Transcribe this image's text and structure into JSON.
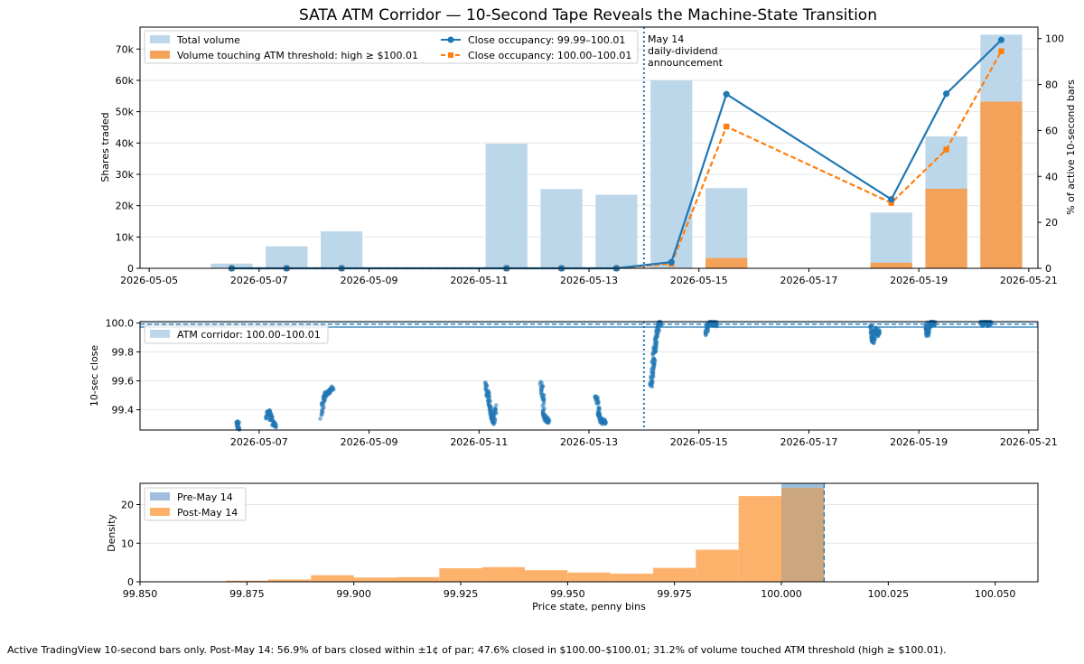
{
  "figure_title": "SATA ATM Corridor — 10-Second Tape Reveals the Machine-State Transition",
  "caption": "Active TradingView 10-second bars only. Post-May 14: 56.9% of bars closed within ±1¢ of par; 47.6% closed in $100.00–$100.01; 31.2% of volume touched ATM threshold (high ≥ $100.01).",
  "colors": {
    "total_volume": "#bdd7ea",
    "touch_volume": "#f4a259",
    "blue": "#1f77b4",
    "orange": "#ff7f0e",
    "pre_hist": "#9fbfdb",
    "post_hist": "#fdb26c",
    "overlap_hist": "#cca67f"
  },
  "chart_data": [
    {
      "type": "bar+line",
      "title": "SATA ATM Corridor — 10-Second Tape Reveals the Machine-State Transition",
      "xlabel": "",
      "ylabel": "Shares traded",
      "y2label": "% of active 10-second bars",
      "x_ticks": [
        "2026-05-05",
        "2026-05-07",
        "2026-05-09",
        "2026-05-11",
        "2026-05-13",
        "2026-05-15",
        "2026-05-17",
        "2026-05-19",
        "2026-05-21"
      ],
      "y_ticks": [
        "0",
        "10k",
        "20k",
        "30k",
        "40k",
        "50k",
        "60k",
        "70k"
      ],
      "y2_ticks": [
        "0",
        "20",
        "40",
        "60",
        "80",
        "100"
      ],
      "xlim": [
        "2026-05-04T20:00",
        "2026-05-21T04:00"
      ],
      "ylim": [
        0,
        77000
      ],
      "y2lim": [
        0,
        105
      ],
      "categories": [
        "2026-05-06",
        "2026-05-07",
        "2026-05-08",
        "2026-05-11",
        "2026-05-12",
        "2026-05-13",
        "2026-05-14",
        "2026-05-15",
        "2026-05-18",
        "2026-05-19",
        "2026-05-20"
      ],
      "bar_series": [
        {
          "name": "Total volume",
          "values": [
            1500,
            7000,
            11800,
            39800,
            25300,
            23500,
            60000,
            25600,
            17800,
            42100,
            74600
          ]
        },
        {
          "name": "Volume touching ATM threshold: high ≥ $100.01",
          "values": [
            0,
            0,
            0,
            0,
            0,
            0,
            0,
            3300,
            1800,
            25400,
            53200
          ]
        }
      ],
      "line_series": [
        {
          "name": "Close occupancy: 99.99–100.01",
          "values": [
            0,
            0,
            0,
            0,
            0,
            0,
            2.7,
            75.8,
            30.0,
            76.0,
            99.4
          ]
        },
        {
          "name": "Close occupancy: 100.00–100.01",
          "values": [
            0,
            0,
            0,
            0,
            0,
            0,
            2.0,
            61.7,
            28.5,
            51.7,
            94.5
          ]
        }
      ],
      "annotation": {
        "date": "2026-05-14",
        "lines": [
          "May 14",
          "daily-dividend",
          "announcement"
        ]
      },
      "legend": "top-left"
    },
    {
      "type": "scatter",
      "ylabel": "10-sec close",
      "x_ticks": [
        "2026-05-07",
        "2026-05-09",
        "2026-05-11",
        "2026-05-13",
        "2026-05-15",
        "2026-05-17",
        "2026-05-19",
        "2026-05-21"
      ],
      "y_ticks": [
        "99.4",
        "99.6",
        "99.8",
        "100.0"
      ],
      "ylim": [
        99.26,
        100.01
      ],
      "corridor": {
        "name": "ATM corridor: 100.00–100.01",
        "range": [
          100.0,
          100.01
        ]
      },
      "marker_date": "2026-05-14",
      "clusters": [
        {
          "day": "2026-05-06",
          "start": 14.5,
          "end": 15.0,
          "points": [
            [
              14.55,
              99.32
            ],
            [
              14.6,
              99.31
            ],
            [
              14.7,
              99.3
            ],
            [
              14.8,
              99.28
            ],
            [
              14.9,
              99.27
            ]
          ]
        },
        {
          "day": "2026-05-07",
          "start": 3.0,
          "end": 7.0,
          "points": [
            [
              3.2,
              99.34
            ],
            [
              3.6,
              99.37
            ],
            [
              4.0,
              99.38
            ],
            [
              4.4,
              99.39
            ],
            [
              4.8,
              99.37
            ],
            [
              5.2,
              99.33
            ],
            [
              5.5,
              99.36
            ],
            [
              5.8,
              99.34
            ],
            [
              6.1,
              99.31
            ],
            [
              6.4,
              99.3
            ],
            [
              6.7,
              99.3
            ],
            [
              6.9,
              99.27
            ]
          ]
        },
        {
          "day": "2026-05-08",
          "start": 3.0,
          "end": 8.5,
          "points": [
            [
              3.2,
              99.34
            ],
            [
              3.6,
              99.41
            ],
            [
              4.0,
              99.46
            ],
            [
              4.4,
              99.48
            ],
            [
              4.8,
              99.5
            ],
            [
              5.3,
              99.51
            ],
            [
              5.8,
              99.52
            ],
            [
              6.3,
              99.52
            ],
            [
              6.8,
              99.53
            ],
            [
              7.3,
              99.54
            ],
            [
              7.8,
              99.55
            ],
            [
              8.2,
              99.54
            ]
          ]
        },
        {
          "day": "2026-05-11",
          "start": 3.0,
          "end": 7.5,
          "points": [
            [
              3.1,
              99.59
            ],
            [
              3.4,
              99.55
            ],
            [
              3.7,
              99.51
            ],
            [
              4.0,
              99.5
            ],
            [
              4.3,
              99.47
            ],
            [
              4.6,
              99.44
            ],
            [
              4.9,
              99.4
            ],
            [
              5.2,
              99.38
            ],
            [
              5.5,
              99.35
            ],
            [
              5.8,
              99.33
            ],
            [
              6.1,
              99.31
            ],
            [
              6.4,
              99.33
            ],
            [
              6.7,
              99.36
            ],
            [
              7.0,
              99.4
            ],
            [
              7.3,
              99.43
            ]
          ]
        },
        {
          "day": "2026-05-12",
          "start": 3.0,
          "end": 6.8,
          "points": [
            [
              3.1,
              99.58
            ],
            [
              3.4,
              99.55
            ],
            [
              3.7,
              99.5
            ],
            [
              4.0,
              99.47
            ],
            [
              4.2,
              99.4
            ],
            [
              4.4,
              99.37
            ],
            [
              4.7,
              99.35
            ],
            [
              5.0,
              99.34
            ],
            [
              5.3,
              99.33
            ],
            [
              5.6,
              99.33
            ],
            [
              5.9,
              99.32
            ],
            [
              6.2,
              99.33
            ],
            [
              6.5,
              99.32
            ]
          ]
        },
        {
          "day": "2026-05-13",
          "start": 3.0,
          "end": 7.5,
          "points": [
            [
              3.1,
              99.49
            ],
            [
              3.4,
              99.48
            ],
            [
              3.7,
              99.45
            ],
            [
              4.0,
              99.4
            ],
            [
              4.3,
              99.37
            ],
            [
              4.6,
              99.35
            ],
            [
              4.9,
              99.34
            ],
            [
              5.2,
              99.33
            ],
            [
              5.6,
              99.32
            ],
            [
              6.0,
              99.32
            ],
            [
              6.4,
              99.31
            ],
            [
              6.8,
              99.32
            ],
            [
              7.2,
              99.33
            ]
          ]
        },
        {
          "day": "2026-05-14",
          "start": 3.0,
          "end": 8.0,
          "points": [
            [
              3.1,
              99.56
            ],
            [
              3.3,
              99.59
            ],
            [
              3.5,
              99.62
            ],
            [
              3.7,
              99.66
            ],
            [
              3.9,
              99.7
            ],
            [
              4.1,
              99.72
            ],
            [
              4.3,
              99.76
            ],
            [
              4.5,
              99.79
            ],
            [
              4.7,
              99.82
            ],
            [
              4.9,
              99.84
            ],
            [
              5.2,
              99.87
            ],
            [
              5.5,
              99.91
            ],
            [
              5.8,
              99.94
            ],
            [
              6.1,
              99.96
            ],
            [
              6.4,
              99.98
            ],
            [
              6.8,
              100.0
            ],
            [
              7.2,
              99.99
            ],
            [
              7.6,
              100.0
            ]
          ]
        },
        {
          "day": "2026-05-15",
          "start": 3.0,
          "end": 8.5,
          "points": [
            [
              3.1,
              99.93
            ],
            [
              3.4,
              99.95
            ],
            [
              3.7,
              99.97
            ],
            [
              4.0,
              99.98
            ],
            [
              4.4,
              99.99
            ],
            [
              4.8,
              100.0
            ],
            [
              5.2,
              100.0
            ],
            [
              5.6,
              99.99
            ],
            [
              6.0,
              100.0
            ],
            [
              6.5,
              100.0
            ],
            [
              7.0,
              100.0
            ],
            [
              7.5,
              99.99
            ],
            [
              8.0,
              100.0
            ]
          ]
        },
        {
          "day": "2026-05-18",
          "start": 3.0,
          "end": 7.5,
          "points": [
            [
              3.1,
              99.99
            ],
            [
              3.3,
              99.96
            ],
            [
              3.5,
              99.93
            ],
            [
              3.7,
              99.9
            ],
            [
              3.9,
              99.88
            ],
            [
              4.1,
              99.87
            ],
            [
              4.3,
              99.89
            ],
            [
              4.6,
              99.91
            ],
            [
              4.9,
              99.93
            ],
            [
              5.2,
              99.95
            ],
            [
              5.5,
              99.96
            ],
            [
              5.9,
              99.94
            ],
            [
              6.3,
              99.92
            ],
            [
              6.7,
              99.93
            ],
            [
              7.1,
              99.95
            ]
          ]
        },
        {
          "day": "2026-05-19",
          "start": 3.0,
          "end": 7.5,
          "points": [
            [
              3.1,
              99.99
            ],
            [
              3.3,
              99.96
            ],
            [
              3.5,
              99.94
            ],
            [
              3.7,
              99.92
            ],
            [
              3.9,
              99.93
            ],
            [
              4.1,
              99.95
            ],
            [
              4.4,
              99.97
            ],
            [
              4.7,
              99.98
            ],
            [
              5.0,
              99.99
            ],
            [
              5.4,
              100.0
            ],
            [
              5.8,
              100.0
            ],
            [
              6.2,
              99.99
            ],
            [
              6.6,
              100.0
            ],
            [
              7.0,
              100.0
            ]
          ]
        },
        {
          "day": "2026-05-20",
          "start": 3.0,
          "end": 8.0,
          "points": [
            [
              3.1,
              100.0
            ],
            [
              3.5,
              100.0
            ],
            [
              3.9,
              99.99
            ],
            [
              4.3,
              100.0
            ],
            [
              4.7,
              100.0
            ],
            [
              5.1,
              100.01
            ],
            [
              5.5,
              100.0
            ],
            [
              5.9,
              100.0
            ],
            [
              6.3,
              99.99
            ],
            [
              6.7,
              100.0
            ],
            [
              7.1,
              100.0
            ],
            [
              7.5,
              100.0
            ]
          ]
        }
      ]
    },
    {
      "type": "histogram",
      "xlabel": "Price state, penny bins",
      "ylabel": "Density",
      "x_ticks": [
        "99.850",
        "99.875",
        "99.900",
        "99.925",
        "99.950",
        "99.975",
        "100.000",
        "100.025",
        "100.050"
      ],
      "y_ticks": [
        "0",
        "10",
        "20"
      ],
      "xlim": [
        99.85,
        100.06
      ],
      "ylim": [
        0,
        25.5
      ],
      "bin_width": 0.01,
      "series": [
        {
          "name": "Pre-May 14",
          "bins": [
            100.0
          ],
          "values": [
            25.5
          ]
        },
        {
          "name": "Post-May 14",
          "bins": [
            99.86,
            99.87,
            99.88,
            99.89,
            99.9,
            99.91,
            99.92,
            99.93,
            99.94,
            99.95,
            99.96,
            99.97,
            99.98,
            99.99,
            100.0
          ],
          "values": [
            0.1,
            0.3,
            0.6,
            1.7,
            1.1,
            1.2,
            3.5,
            3.8,
            3.0,
            2.4,
            2.1,
            3.6,
            8.3,
            22.2,
            24.3
          ]
        }
      ],
      "reference_line": 100.01,
      "legend": "top-left"
    }
  ]
}
